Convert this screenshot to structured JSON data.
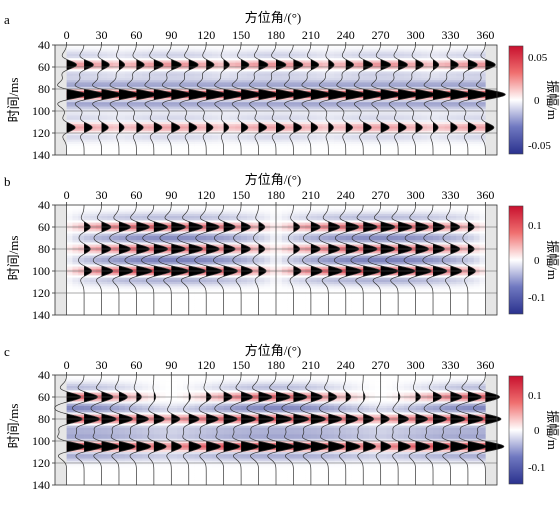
{
  "figure": {
    "panels": [
      {
        "tag": "a",
        "x_label": "方位角/(°)",
        "y_label": "时间/ms",
        "colorbar_label": "振幅/m",
        "colorbar_ticks": [
          "0.05",
          "0",
          "-0.05"
        ]
      },
      {
        "tag": "b",
        "x_label": "方位角/(°)",
        "y_label": "时间/ms",
        "colorbar_label": "振幅/m",
        "colorbar_ticks": [
          "0.1",
          "0",
          "-0.1"
        ]
      },
      {
        "tag": "c",
        "x_label": "方位角/(°)",
        "y_label": "时间/ms",
        "colorbar_label": "振幅/m",
        "colorbar_ticks": [
          "0.1",
          "0",
          "-0.1"
        ]
      }
    ]
  },
  "chart_data": [
    {
      "type": "heatmap",
      "panel": "a",
      "xlabel": "方位角/(°)",
      "ylabel": "时间/ms",
      "colorbar_label": "振幅/m",
      "x_ticks": [
        0,
        30,
        60,
        90,
        120,
        150,
        180,
        210,
        240,
        270,
        300,
        330,
        360
      ],
      "y_ticks": [
        40,
        60,
        80,
        100,
        120,
        140
      ],
      "xlim": [
        -10,
        370
      ],
      "ylim": [
        140,
        40
      ],
      "clim": [
        -0.07,
        0.07
      ],
      "trace_azimuths": [
        0,
        15,
        30,
        45,
        60,
        75,
        90,
        105,
        120,
        135,
        150,
        165,
        180,
        195,
        210,
        225,
        240,
        255,
        270,
        285,
        300,
        315,
        330,
        345,
        360
      ],
      "events": [
        {
          "time_ms": 58,
          "amplitude_pattern": "cos4",
          "peak": 0.035,
          "base": 0.02
        },
        {
          "time_ms": 85,
          "amplitude_pattern": "constant",
          "peak": 0.07,
          "base": 0.07
        },
        {
          "time_ms": 115,
          "amplitude_pattern": "cos4",
          "peak": 0.03,
          "base": 0.018
        }
      ]
    },
    {
      "type": "heatmap",
      "panel": "b",
      "xlabel": "方位角/(°)",
      "ylabel": "时间/ms",
      "colorbar_label": "振幅/m",
      "x_ticks": [
        0,
        30,
        60,
        90,
        120,
        150,
        180,
        210,
        240,
        270,
        300,
        330,
        360
      ],
      "y_ticks": [
        40,
        60,
        80,
        100,
        120,
        140
      ],
      "xlim": [
        -10,
        370
      ],
      "ylim": [
        140,
        40
      ],
      "clim": [
        -0.14,
        0.14
      ],
      "trace_azimuths": [
        0,
        15,
        30,
        45,
        60,
        75,
        90,
        105,
        120,
        135,
        150,
        165,
        180,
        195,
        210,
        225,
        240,
        255,
        270,
        285,
        300,
        315,
        330,
        345,
        360
      ],
      "events": [
        {
          "time_ms": 60,
          "amplitude_pattern": "abs_sin2",
          "peak": 0.1,
          "base": 0.0
        },
        {
          "time_ms": 80,
          "amplitude_pattern": "abs_sin2",
          "peak": 0.1,
          "base": 0.0
        },
        {
          "time_ms": 100,
          "amplitude_pattern": "abs_sin2",
          "peak": 0.12,
          "base": 0.0
        }
      ]
    },
    {
      "type": "heatmap",
      "panel": "c",
      "xlabel": "方位角/(°)",
      "ylabel": "时间/ms",
      "colorbar_label": "振幅/m",
      "x_ticks": [
        0,
        30,
        60,
        90,
        120,
        150,
        180,
        210,
        240,
        270,
        300,
        330,
        360
      ],
      "y_ticks": [
        40,
        60,
        80,
        100,
        120,
        140
      ],
      "xlim": [
        -10,
        370
      ],
      "ylim": [
        140,
        40
      ],
      "clim": [
        -0.14,
        0.14
      ],
      "trace_azimuths": [
        0,
        15,
        30,
        45,
        60,
        75,
        90,
        105,
        120,
        135,
        150,
        165,
        180,
        195,
        210,
        225,
        240,
        255,
        270,
        285,
        300,
        315,
        330,
        345,
        360
      ],
      "events": [
        {
          "time_ms": 60,
          "amplitude_pattern": "abs_cos2",
          "peak": 0.1,
          "base": 0.0
        },
        {
          "time_ms": 80,
          "amplitude_pattern": "abs_cos2_sin2_mix",
          "peak": 0.11,
          "base": 0.0
        },
        {
          "time_ms": 105,
          "amplitude_pattern": "abs_cos2_sin2_mix",
          "peak": 0.13,
          "base": 0.0
        }
      ]
    }
  ]
}
